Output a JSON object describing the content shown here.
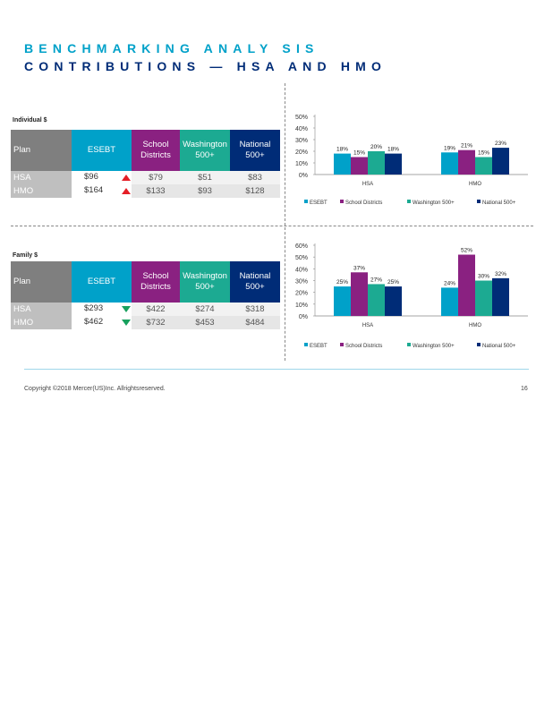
{
  "title_line1": "BENCHMARKING ANALY SIS",
  "title_line2": "CONTRIBUTIONS — HSA AND HMO",
  "footer": {
    "copyright": "Copyright ©2018 Mercer(US)Inc. Allrightsreserved.",
    "page": "16"
  },
  "colors": {
    "esebt": "#00A1C9",
    "school": "#8A2181",
    "washington": "#1CAA92",
    "national": "#002C77",
    "up_arrow": "#E41E26",
    "down_arrow": "#17A05D"
  },
  "individual": {
    "label": "Individual $",
    "headers": {
      "plan": "Plan",
      "esebt": "ESEBT",
      "school": "School Districts",
      "washington": "Washington 500+",
      "national": "National 500+"
    },
    "rows": [
      {
        "plan": "HSA",
        "esebt": "$96",
        "trend": "up",
        "school": "$79",
        "washington": "$51",
        "national": "$83"
      },
      {
        "plan": "HMO",
        "esebt": "$164",
        "trend": "up",
        "school": "$133",
        "washington": "$93",
        "national": "$128"
      }
    ]
  },
  "family": {
    "label": "Family $",
    "headers": {
      "plan": "Plan",
      "esebt": "ESEBT",
      "school": "School Districts",
      "washington": "Washington 500+",
      "national": "National 500+"
    },
    "rows": [
      {
        "plan": "HSA",
        "esebt": "$293",
        "trend": "down",
        "school": "$422",
        "washington": "$274",
        "national": "$318"
      },
      {
        "plan": "HMO",
        "esebt": "$462",
        "trend": "down",
        "school": "$732",
        "washington": "$453",
        "national": "$484"
      }
    ]
  },
  "chart_data": [
    {
      "type": "bar",
      "categories": [
        "HSA",
        "HMO"
      ],
      "ylim": [
        0,
        50
      ],
      "yticks": [
        "0%",
        "10%",
        "20%",
        "30%",
        "40%",
        "50%"
      ],
      "series": [
        {
          "name": "ESEBT",
          "values": [
            18,
            19
          ],
          "labels": [
            "18%",
            "19%"
          ]
        },
        {
          "name": "School Districts",
          "values": [
            15,
            21
          ],
          "labels": [
            "15%",
            "21%"
          ]
        },
        {
          "name": "Washington 500+",
          "values": [
            20,
            15
          ],
          "labels": [
            "20%",
            "15%"
          ]
        },
        {
          "name": "National 500+",
          "values": [
            18,
            23
          ],
          "labels": [
            "18%",
            "23%"
          ]
        }
      ],
      "legend": "bottom"
    },
    {
      "type": "bar",
      "categories": [
        "HSA",
        "HMO"
      ],
      "ylim": [
        0,
        60
      ],
      "yticks": [
        "0%",
        "10%",
        "20%",
        "30%",
        "40%",
        "50%",
        "60%"
      ],
      "series": [
        {
          "name": "ESEBT",
          "values": [
            25,
            24
          ],
          "labels": [
            "25%",
            "24%"
          ]
        },
        {
          "name": "School Districts",
          "values": [
            37,
            52
          ],
          "labels": [
            "37%",
            "52%"
          ]
        },
        {
          "name": "Washington 500+",
          "values": [
            27,
            30
          ],
          "labels": [
            "27%",
            "30%"
          ]
        },
        {
          "name": "National 500+",
          "values": [
            25,
            32
          ],
          "labels": [
            "25%",
            "32%"
          ]
        }
      ],
      "legend": "bottom"
    }
  ]
}
